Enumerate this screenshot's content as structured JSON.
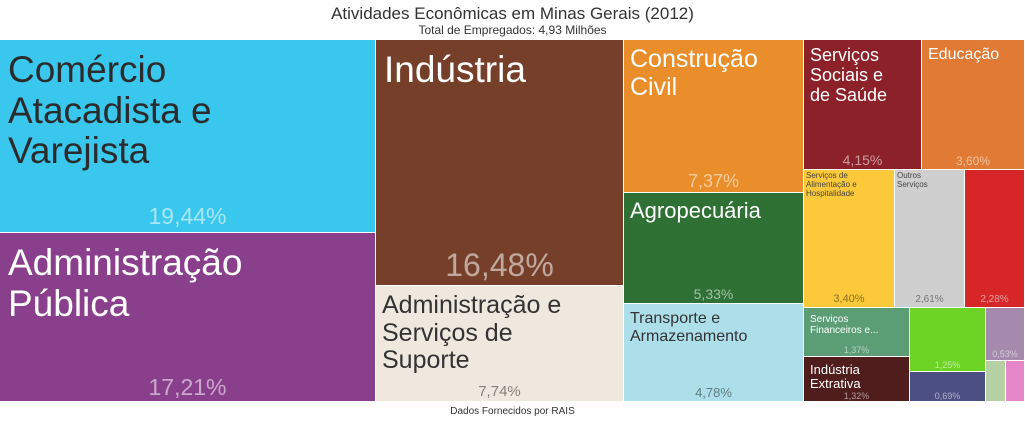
{
  "header": {
    "title": "Atividades Econômicas em Minas Gerais (2012)",
    "subtitle": "Total de Empregados: 4,93 Milhões"
  },
  "footer": {
    "source": "Dados Fornecidos por RAIS"
  },
  "chart_data": {
    "type": "treemap",
    "title": "Atividades Econômicas em Minas Gerais (2012)",
    "subtitle": "Total de Empregados: 4,93 Milhões",
    "items": [
      {
        "name": "Comércio\nAtacadista e\nVarejista",
        "value": 19.44,
        "label": "19,44%",
        "color": "#3ac7ee"
      },
      {
        "name": "Administração\nPública",
        "value": 17.21,
        "label": "17,21%",
        "color": "#8a3f8c"
      },
      {
        "name": "Indústria",
        "value": 16.48,
        "label": "16,48%",
        "color": "#763f2a"
      },
      {
        "name": "Administração e\nServiços de\nSuporte",
        "value": 7.74,
        "label": "7,74%",
        "color": "#efe8de"
      },
      {
        "name": "Construção\nCivil",
        "value": 7.37,
        "label": "7,37%",
        "color": "#e98e2b"
      },
      {
        "name": "Agropecuária",
        "value": 5.33,
        "label": "5,33%",
        "color": "#2f7134"
      },
      {
        "name": "Transporte e\nArmazenamento",
        "value": 4.78,
        "label": "4,78%",
        "color": "#acdfe9"
      },
      {
        "name": "Serviços\nSociais e\nde Saúde",
        "value": 4.15,
        "label": "4,15%",
        "color": "#8d2129"
      },
      {
        "name": "Educação",
        "value": 3.6,
        "label": "3,60%",
        "color": "#e07a35"
      },
      {
        "name": "Serviços de\nAlimentação e\nHospitalidade",
        "value": 3.4,
        "label": "3,40%",
        "color": "#fbc93a"
      },
      {
        "name": "Outros\nServiços",
        "value": 2.61,
        "label": "2,61%",
        "color": "#cfcfcf"
      },
      {
        "name": "",
        "value": 2.28,
        "label": "2,28%",
        "color": "#d62627"
      },
      {
        "name": "Serviços\nFinanceiros e...",
        "value": 1.37,
        "label": "1,37%",
        "color": "#5b9e76"
      },
      {
        "name": "",
        "value": 1.25,
        "label": "1,25%",
        "color": "#6dd425"
      },
      {
        "name": "",
        "value": 0.53,
        "label": "0,53%",
        "color": "#a58aad"
      },
      {
        "name": "Indústria\nExtrativa",
        "value": 1.32,
        "label": "1,32%",
        "color": "#4f1d1c"
      },
      {
        "name": "",
        "value": 0.69,
        "label": "0,69%",
        "color": "#4c4f84"
      },
      {
        "name": "",
        "value": null,
        "label": "",
        "color": "#b6d0a6"
      },
      {
        "name": "",
        "value": null,
        "label": "",
        "color": "#e486c7"
      }
    ]
  }
}
